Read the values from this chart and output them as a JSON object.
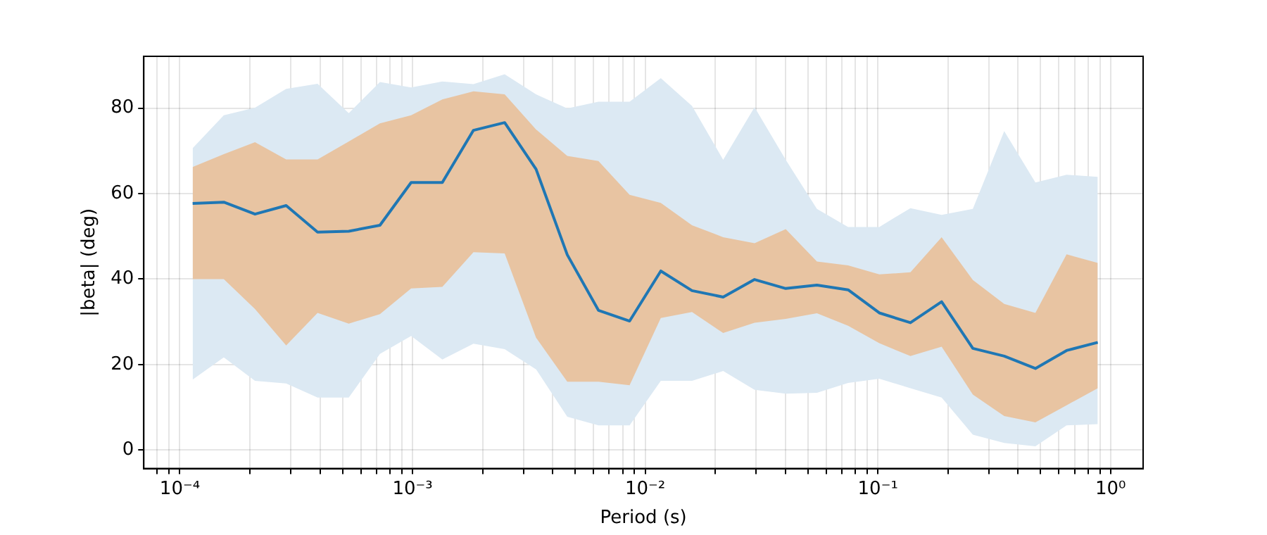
{
  "chart_data": {
    "type": "line",
    "xlabel": "Period (s)",
    "ylabel": "|beta| (deg)",
    "log": "x",
    "grid": true,
    "legend": false,
    "marker": "none",
    "line_style": "solid",
    "x": [
      0.0001135,
      0.0001545,
      0.0002104,
      0.0002864,
      0.0003908,
      0.0005321,
      0.0007244,
      0.0009863,
      0.001343,
      0.001828,
      0.002489,
      0.003396,
      0.004624,
      0.006295,
      0.00857,
      0.01167,
      0.01589,
      0.02163,
      0.02951,
      0.04018,
      0.0547,
      0.07447,
      0.1014,
      0.138,
      0.1879,
      0.2559,
      0.3491,
      0.4753,
      0.6471,
      0.881
    ],
    "xlim": [
      7.3e-05,
      1.38
    ],
    "xticks": [
      {
        "value": 8e-05,
        "label": null
      },
      {
        "value": 9e-05,
        "label": null
      },
      {
        "value": 0.0001,
        "label": "10⁻⁴"
      },
      {
        "value": 0.0002,
        "label": null
      },
      {
        "value": 0.0003,
        "label": null
      },
      {
        "value": 0.0004,
        "label": null
      },
      {
        "value": 0.0005,
        "label": null
      },
      {
        "value": 0.0006,
        "label": null
      },
      {
        "value": 0.0007,
        "label": null
      },
      {
        "value": 0.0008,
        "label": null
      },
      {
        "value": 0.0009,
        "label": null
      },
      {
        "value": 0.001,
        "label": "10⁻³"
      },
      {
        "value": 0.002,
        "label": null
      },
      {
        "value": 0.003,
        "label": null
      },
      {
        "value": 0.004,
        "label": null
      },
      {
        "value": 0.005,
        "label": null
      },
      {
        "value": 0.006,
        "label": null
      },
      {
        "value": 0.007,
        "label": null
      },
      {
        "value": 0.008,
        "label": null
      },
      {
        "value": 0.009,
        "label": null
      },
      {
        "value": 0.01,
        "label": "10⁻²"
      },
      {
        "value": 0.02,
        "label": null
      },
      {
        "value": 0.03,
        "label": null
      },
      {
        "value": 0.04,
        "label": null
      },
      {
        "value": 0.05,
        "label": null
      },
      {
        "value": 0.06,
        "label": null
      },
      {
        "value": 0.07,
        "label": null
      },
      {
        "value": 0.08,
        "label": null
      },
      {
        "value": 0.09,
        "label": null
      },
      {
        "value": 0.1,
        "label": "10⁻¹"
      },
      {
        "value": 0.2,
        "label": null
      },
      {
        "value": 0.3,
        "label": null
      },
      {
        "value": 0.4,
        "label": null
      },
      {
        "value": 0.5,
        "label": null
      },
      {
        "value": 0.6,
        "label": null
      },
      {
        "value": 0.7,
        "label": null
      },
      {
        "value": 0.8,
        "label": null
      },
      {
        "value": 0.9,
        "label": null
      },
      {
        "value": 1,
        "label": "10⁰"
      }
    ],
    "ylim": [
      -4.3,
      92.1
    ],
    "yticks": [
      0,
      20,
      40,
      60,
      80
    ],
    "series": [
      {
        "color": "#dce9f3",
        "values": [
          null,
          null,
          null,
          null,
          null,
          null,
          null,
          null,
          null,
          null,
          null,
          null,
          null,
          null,
          null,
          null,
          null,
          null,
          null,
          null,
          null,
          null,
          null,
          null,
          null,
          null,
          null,
          null,
          null,
          null
        ],
        "lower": [
          16.5,
          21.7,
          16.2,
          15.6,
          12.3,
          12.3,
          22.5,
          26.7,
          21.2,
          24.9,
          23.6,
          18.9,
          7.8,
          5.8,
          5.8,
          16.2,
          16.2,
          18.5,
          14.1,
          13.2,
          13.4,
          15.7,
          16.7,
          14.5,
          12.3,
          3.6,
          1.7,
          0.9,
          5.8,
          6.1
        ],
        "upper": [
          70.6,
          78.3,
          80.1,
          84.5,
          85.7,
          78.8,
          86.1,
          84.8,
          86.2,
          85.6,
          87.9,
          83.2,
          79.9,
          81.5,
          81.5,
          87,
          80.5,
          67.9,
          80.2,
          67.9,
          56.4,
          52.2,
          52.2,
          56.6,
          55,
          56.4,
          74.6,
          62.6,
          64.4,
          63.9
        ]
      },
      {
        "color": "#e8c4a2",
        "values": [
          null,
          null,
          null,
          null,
          null,
          null,
          null,
          null,
          null,
          null,
          null,
          null,
          null,
          null,
          null,
          null,
          null,
          null,
          null,
          null,
          null,
          null,
          null,
          null,
          null,
          null,
          null,
          null,
          null,
          null
        ],
        "lower": [
          40,
          40,
          33,
          24.5,
          32.1,
          29.6,
          31.8,
          37.8,
          38.2,
          46.3,
          46,
          26.3,
          16,
          16,
          15.2,
          30.9,
          32.3,
          27.4,
          29.8,
          30.7,
          32,
          29.1,
          25,
          22,
          24.2,
          13,
          8,
          6.5,
          10.5,
          14.5
        ],
        "upper": [
          66.2,
          69.2,
          72,
          68,
          68,
          72.2,
          76.4,
          78.3,
          82,
          83.9,
          83.2,
          75,
          68.8,
          67.6,
          59.7,
          57.8,
          52.6,
          49.8,
          48.4,
          51.7,
          44.1,
          43.2,
          41.1,
          41.6,
          49.8,
          39.8,
          34.2,
          32.1,
          45.8,
          43.8
        ]
      },
      {
        "color": "#1f77b4",
        "values": [
          57.7,
          58,
          55.2,
          57.2,
          51,
          51.2,
          52.6,
          62.6,
          62.6,
          74.8,
          76.6,
          65.7,
          45.7,
          32.7,
          30.2,
          41.9,
          37.3,
          35.8,
          39.9,
          37.8,
          38.6,
          37.5,
          32.1,
          29.8,
          34.7,
          23.8,
          22,
          19.1,
          23.3,
          25.2
        ]
      }
    ]
  }
}
